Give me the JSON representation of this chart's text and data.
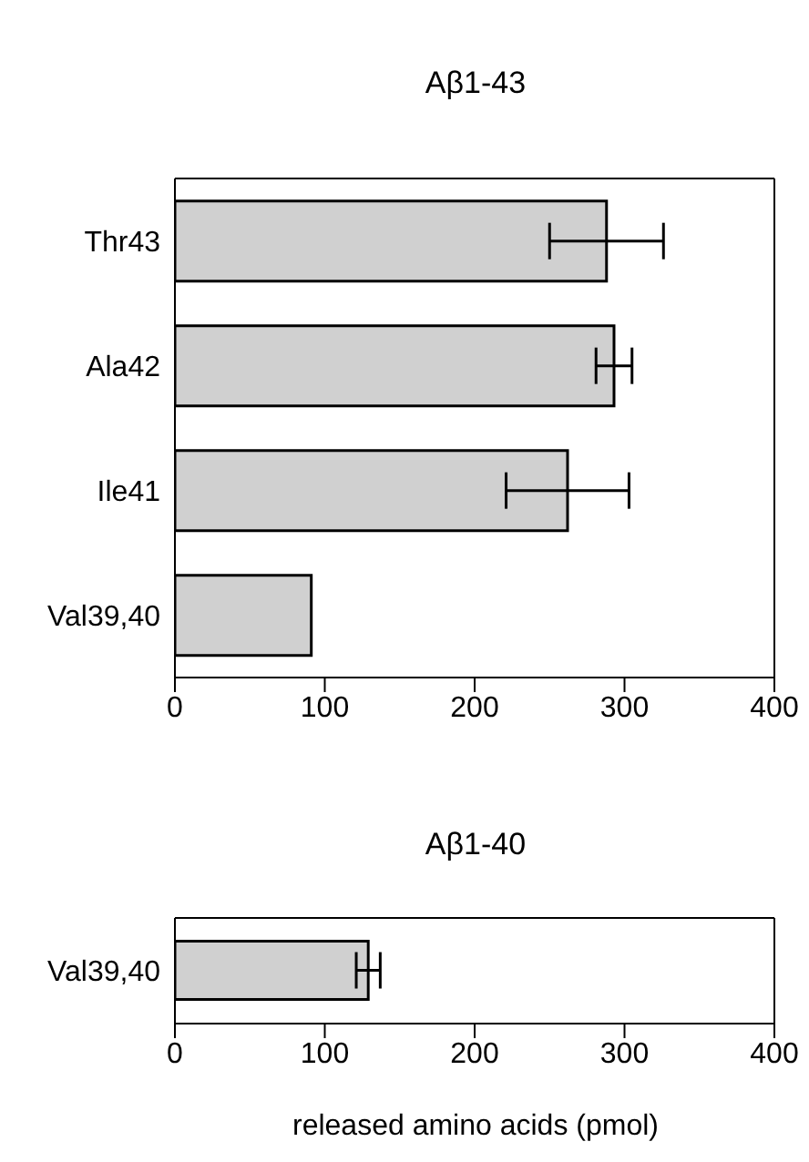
{
  "chart_data": [
    {
      "type": "bar",
      "orientation": "horizontal",
      "title": "Aβ1-43",
      "categories": [
        "Thr43",
        "Ala42",
        "Ile41",
        "Val39,40"
      ],
      "values": [
        288,
        293,
        262,
        91
      ],
      "errors": [
        38,
        12,
        41,
        null
      ],
      "color": "#d0d0d0",
      "xlim": [
        0,
        400
      ],
      "xticks": [
        0,
        100,
        200,
        300,
        400
      ],
      "grid": false,
      "legend": false
    },
    {
      "type": "bar",
      "orientation": "horizontal",
      "title": "Aβ1-40",
      "xlabel": "released amino acids (pmol)",
      "categories": [
        "Val39,40"
      ],
      "values": [
        129
      ],
      "errors": [
        8
      ],
      "color": "#d0d0d0",
      "xlim": [
        0,
        400
      ],
      "xticks": [
        0,
        100,
        200,
        300,
        400
      ],
      "grid": false,
      "legend": false
    }
  ]
}
